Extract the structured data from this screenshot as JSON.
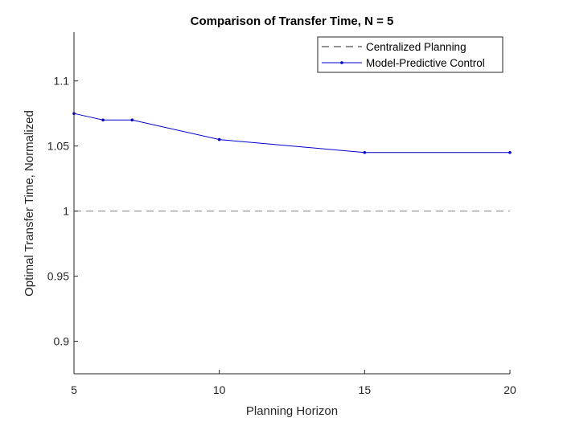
{
  "chart_data": {
    "type": "line",
    "title": "Comparison of Transfer Time, N = 5",
    "xlabel": "Planning Horizon",
    "ylabel": "Optimal Transfer Time, Normalized",
    "xlim": [
      5,
      20
    ],
    "ylim": [
      0.875,
      1.1375
    ],
    "xticks": [
      5,
      10,
      15,
      20
    ],
    "xtick_labels": [
      "5",
      "10",
      "15",
      "20"
    ],
    "yticks": [
      0.9,
      0.95,
      1,
      1.05,
      1.1
    ],
    "ytick_labels": [
      "0.9",
      "0.95",
      "1",
      "1.05",
      "1.1"
    ],
    "grid": false,
    "legend_position": "top-right",
    "series": [
      {
        "name": "Centralized Planning",
        "style": "dashed",
        "color": "#808080",
        "markers": false,
        "x": [
          5,
          20
        ],
        "y": [
          1,
          1
        ]
      },
      {
        "name": "Model-Predictive Control",
        "style": "solid",
        "color": "#0000cc",
        "markers": true,
        "x": [
          5,
          6,
          7,
          10,
          15,
          20
        ],
        "y": [
          1.075,
          1.07,
          1.07,
          1.055,
          1.045,
          1.045
        ]
      }
    ]
  }
}
